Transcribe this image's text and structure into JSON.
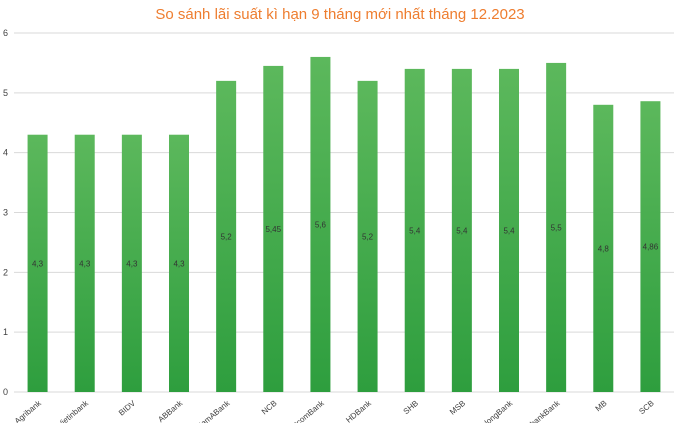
{
  "chart_data": {
    "type": "bar",
    "title": "So sánh lãi suất kì hạn 9 tháng mới nhất tháng 12.2023",
    "categories": [
      "Agribank",
      "Vietinbank",
      "BIDV",
      "ABBank",
      "NamABank",
      "NCB",
      "VietcomBank",
      "HDBank",
      "SHB",
      "MSB",
      "KienlongBank",
      "SaigonbankBank",
      "MB",
      "SCB"
    ],
    "values": [
      4.3,
      4.3,
      4.3,
      4.3,
      5.2,
      5.45,
      5.6,
      5.2,
      5.4,
      5.4,
      5.4,
      5.5,
      4.8,
      4.86
    ],
    "data_labels": [
      "4,3",
      "4,3",
      "4,3",
      "4,3",
      "5,2",
      "5,45",
      "5,6",
      "5,2",
      "5,4",
      "5,4",
      "5,4",
      "5,5",
      "4,8",
      "4,86"
    ],
    "xlabel": "",
    "ylabel": "",
    "ylim": [
      0,
      6
    ],
    "yticks": [
      "0",
      "1",
      "2",
      "3",
      "4",
      "5",
      "6"
    ],
    "grid": true,
    "legend": "none",
    "colors": {
      "bar_top": "#5cb85c",
      "bar_bottom": "#2e9e3e",
      "title": "#ee7d2f",
      "grid": "#d9d9d9"
    }
  }
}
